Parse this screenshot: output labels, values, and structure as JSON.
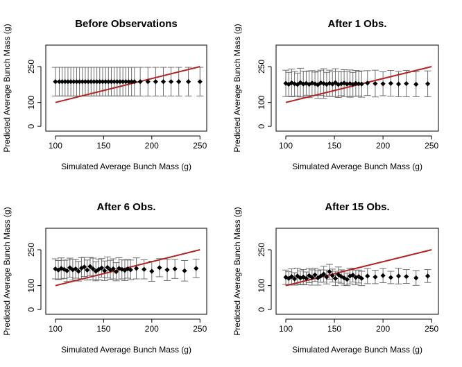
{
  "figure": {
    "colors": {
      "points": "#000000",
      "error_bars": "#6e6e6e",
      "reference_line": "#b22222",
      "frame": "#000000"
    }
  },
  "chart_data": [
    {
      "type": "scatter",
      "title": "Before Observations",
      "xlabel": "Simulated Average Bunch Mass (g)",
      "ylabel": "Predicted Average Bunch Mass (g)",
      "xlim": [
        90,
        257
      ],
      "ylim": [
        -20,
        340
      ],
      "xticks": [
        100,
        150,
        200,
        250
      ],
      "yticks": [
        0,
        100,
        250
      ],
      "points_x": [
        100,
        104,
        107,
        110,
        113,
        116,
        119,
        122,
        125,
        128,
        131,
        134,
        137,
        140,
        143,
        146,
        149,
        152,
        155,
        158,
        161,
        164,
        167,
        170,
        173,
        176,
        179,
        182,
        188,
        196,
        204,
        212,
        220,
        228,
        238,
        250
      ],
      "points_y": [
        187,
        187,
        187,
        187,
        187,
        187,
        187,
        187,
        187,
        187,
        187,
        187,
        187,
        187,
        187,
        187,
        187,
        187,
        187,
        187,
        187,
        187,
        187,
        187,
        187,
        187,
        187,
        187,
        187,
        187,
        187,
        187,
        187,
        187,
        187,
        187
      ],
      "err_half": [
        60,
        60,
        60,
        60,
        60,
        60,
        60,
        60,
        60,
        60,
        60,
        60,
        60,
        60,
        60,
        60,
        60,
        60,
        60,
        60,
        60,
        60,
        60,
        60,
        60,
        60,
        60,
        60,
        60,
        60,
        60,
        60,
        60,
        60,
        60,
        60
      ],
      "reference_line": {
        "x": [
          100,
          250
        ],
        "y": [
          100,
          250
        ]
      }
    },
    {
      "type": "scatter",
      "title": "After 1 Obs.",
      "xlabel": "Simulated Average Bunch Mass (g)",
      "ylabel": "Predicted Average Bunch Mass (g)",
      "xlim": [
        90,
        257
      ],
      "ylim": [
        -20,
        340
      ],
      "xticks": [
        100,
        150,
        200,
        250
      ],
      "yticks": [
        0,
        100,
        250
      ],
      "points_x": [
        100,
        103,
        106,
        109,
        112,
        115,
        118,
        121,
        124,
        127,
        130,
        133,
        136,
        139,
        142,
        145,
        148,
        151,
        154,
        157,
        160,
        163,
        166,
        169,
        172,
        175,
        178,
        184,
        192,
        200,
        208,
        216,
        224,
        234,
        246
      ],
      "points_y": [
        180,
        176,
        182,
        178,
        175,
        183,
        177,
        180,
        176,
        181,
        178,
        174,
        182,
        179,
        176,
        180,
        177,
        183,
        175,
        178,
        181,
        177,
        179,
        176,
        180,
        178,
        177,
        181,
        179,
        178,
        180,
        177,
        179,
        176,
        178
      ],
      "err_half": [
        55,
        50,
        58,
        52,
        48,
        60,
        54,
        50,
        56,
        52,
        49,
        57,
        53,
        62,
        50,
        55,
        51,
        58,
        54,
        50,
        56,
        52,
        57,
        50,
        54,
        51,
        55,
        52,
        56,
        50,
        54,
        53,
        55,
        52,
        54
      ],
      "reference_line": {
        "x": [
          100,
          250
        ],
        "y": [
          100,
          250
        ]
      }
    },
    {
      "type": "scatter",
      "title": "After 6 Obs.",
      "xlabel": "Simulated Average Bunch Mass (g)",
      "ylabel": "Predicted Average Bunch Mass (g)",
      "xlim": [
        90,
        257
      ],
      "ylim": [
        -20,
        340
      ],
      "xticks": [
        100,
        150,
        200,
        250
      ],
      "yticks": [
        0,
        100,
        250
      ],
      "points_x": [
        100,
        103,
        106,
        109,
        112,
        115,
        118,
        121,
        124,
        127,
        130,
        133,
        136,
        139,
        142,
        145,
        148,
        151,
        154,
        157,
        160,
        163,
        166,
        169,
        172,
        175,
        178,
        184,
        192,
        200,
        208,
        216,
        224,
        234,
        246
      ],
      "points_y": [
        170,
        165,
        172,
        168,
        162,
        175,
        166,
        170,
        160,
        173,
        178,
        165,
        180,
        170,
        160,
        168,
        174,
        162,
        176,
        166,
        170,
        158,
        172,
        168,
        164,
        170,
        166,
        172,
        168,
        160,
        175,
        166,
        170,
        162,
        172
      ],
      "err_half": [
        42,
        40,
        44,
        38,
        45,
        40,
        43,
        39,
        41,
        44,
        40,
        42,
        38,
        45,
        40,
        43,
        39,
        41,
        44,
        40,
        42,
        38,
        45,
        40,
        43,
        39,
        41,
        44,
        40,
        42,
        38,
        45,
        40,
        43,
        39
      ],
      "reference_line": {
        "x": [
          100,
          250
        ],
        "y": [
          100,
          250
        ]
      }
    },
    {
      "type": "scatter",
      "title": "After 15 Obs.",
      "xlabel": "Simulated Average Bunch Mass (g)",
      "ylabel": "Predicted Average Bunch Mass (g)",
      "xlim": [
        90,
        257
      ],
      "ylim": [
        -20,
        340
      ],
      "xticks": [
        100,
        150,
        200,
        250
      ],
      "yticks": [
        0,
        100,
        250
      ],
      "points_x": [
        100,
        103,
        106,
        109,
        112,
        115,
        118,
        121,
        124,
        127,
        130,
        133,
        136,
        139,
        142,
        145,
        148,
        151,
        154,
        157,
        160,
        163,
        166,
        169,
        172,
        175,
        178,
        184,
        192,
        200,
        208,
        216,
        224,
        234,
        246
      ],
      "points_y": [
        135,
        130,
        138,
        128,
        140,
        132,
        136,
        130,
        142,
        134,
        145,
        132,
        140,
        148,
        136,
        158,
        142,
        130,
        146,
        138,
        132,
        126,
        140,
        144,
        134,
        138,
        130,
        140,
        136,
        142,
        134,
        140,
        138,
        132,
        140
      ],
      "err_half": [
        30,
        28,
        32,
        26,
        33,
        29,
        31,
        27,
        30,
        32,
        28,
        30,
        26,
        33,
        29,
        31,
        27,
        30,
        32,
        28,
        30,
        26,
        33,
        29,
        31,
        27,
        30,
        32,
        28,
        30,
        26,
        33,
        29,
        31,
        27
      ],
      "reference_line": {
        "x": [
          100,
          250
        ],
        "y": [
          100,
          250
        ]
      }
    }
  ]
}
